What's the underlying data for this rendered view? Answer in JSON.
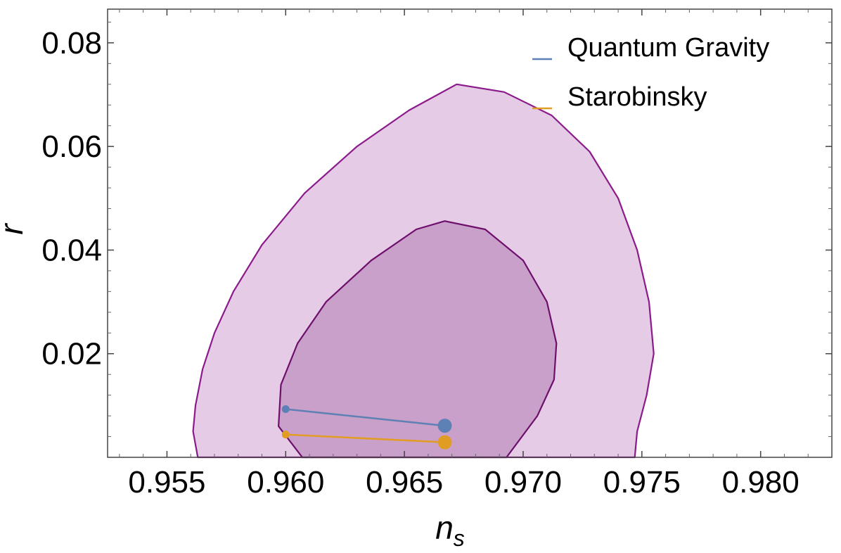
{
  "chart_data": {
    "type": "scatter",
    "xlabel": "n",
    "xlabel_subscript": "s",
    "ylabel": "r",
    "xlim": [
      0.9525,
      0.983
    ],
    "ylim": [
      0.0,
      0.0865
    ],
    "x_ticks": [
      {
        "value": 0.955,
        "label": "0.955"
      },
      {
        "value": 0.96,
        "label": "0.960"
      },
      {
        "value": 0.965,
        "label": "0.965"
      },
      {
        "value": 0.97,
        "label": "0.970"
      },
      {
        "value": 0.975,
        "label": "0.975"
      },
      {
        "value": 0.98,
        "label": "0.980"
      }
    ],
    "y_ticks": [
      {
        "value": 0.02,
        "label": "0.02"
      },
      {
        "value": 0.04,
        "label": "0.04"
      },
      {
        "value": 0.06,
        "label": "0.06"
      },
      {
        "value": 0.08,
        "label": "0.08"
      }
    ],
    "grid": false,
    "legend_position": "top-right",
    "series": [
      {
        "name": "Quantum Gravity",
        "color": "#5e81b5",
        "points": [
          {
            "x": 0.96,
            "y": 0.0093
          },
          {
            "x": 0.9667,
            "y": 0.0061
          }
        ]
      },
      {
        "name": "Starobinsky",
        "color": "#e19c24",
        "points": [
          {
            "x": 0.96,
            "y": 0.0044
          },
          {
            "x": 0.9667,
            "y": 0.0029
          }
        ]
      }
    ],
    "contours": [
      {
        "level": "outer",
        "fill": "#e5cbe5",
        "stroke": "#8b1a8b",
        "points": [
          [
            0.9563,
            0.0
          ],
          [
            0.9561,
            0.005
          ],
          [
            0.9562,
            0.01
          ],
          [
            0.9565,
            0.017
          ],
          [
            0.957,
            0.024
          ],
          [
            0.9578,
            0.032
          ],
          [
            0.959,
            0.041
          ],
          [
            0.9608,
            0.051
          ],
          [
            0.963,
            0.06
          ],
          [
            0.9652,
            0.067
          ],
          [
            0.9672,
            0.072
          ],
          [
            0.9692,
            0.0705
          ],
          [
            0.9712,
            0.066
          ],
          [
            0.9728,
            0.059
          ],
          [
            0.974,
            0.05
          ],
          [
            0.9748,
            0.04
          ],
          [
            0.9753,
            0.03
          ],
          [
            0.9755,
            0.02
          ],
          [
            0.9752,
            0.012
          ],
          [
            0.9748,
            0.005
          ],
          [
            0.9747,
            0.0
          ]
        ]
      },
      {
        "level": "inner",
        "fill": "#c9a0c9",
        "stroke": "#6e0f6e",
        "points": [
          [
            0.9607,
            0.0
          ],
          [
            0.9597,
            0.006
          ],
          [
            0.9598,
            0.014
          ],
          [
            0.9605,
            0.022
          ],
          [
            0.9617,
            0.03
          ],
          [
            0.9636,
            0.038
          ],
          [
            0.9655,
            0.044
          ],
          [
            0.9667,
            0.0456
          ],
          [
            0.9684,
            0.044
          ],
          [
            0.97,
            0.038
          ],
          [
            0.971,
            0.03
          ],
          [
            0.9714,
            0.022
          ],
          [
            0.9713,
            0.015
          ],
          [
            0.9706,
            0.008
          ],
          [
            0.9693,
            0.0
          ]
        ]
      }
    ]
  }
}
